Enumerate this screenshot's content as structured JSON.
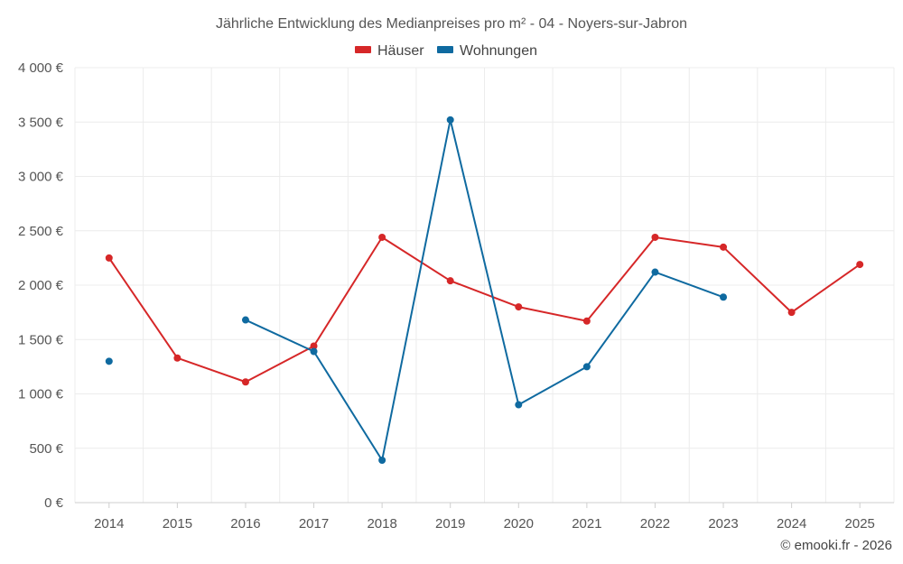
{
  "chart_data": {
    "type": "line",
    "title": "Jährliche Entwicklung des Medianpreises pro m² - 04 - Noyers-sur-Jabron",
    "categories": [
      "2014",
      "2015",
      "2016",
      "2017",
      "2018",
      "2019",
      "2020",
      "2021",
      "2022",
      "2023",
      "2024",
      "2025"
    ],
    "ylim": [
      0,
      4000
    ],
    "yticks": [
      0,
      500,
      1000,
      1500,
      2000,
      2500,
      3000,
      3500,
      4000
    ],
    "ytick_labels": [
      "0 €",
      "500 €",
      "1 000 €",
      "1 500 €",
      "2 000 €",
      "2 500 €",
      "3 000 €",
      "3 500 €",
      "4 000 €"
    ],
    "grid": true,
    "legend_position": "top-center",
    "series": [
      {
        "name": "Häuser",
        "color": "#d62728",
        "values": [
          2250,
          1330,
          1110,
          1440,
          2440,
          2040,
          1800,
          1670,
          2440,
          2350,
          1750,
          2190
        ]
      },
      {
        "name": "Wohnungen",
        "color": "#0f6aa0",
        "values": [
          1300,
          null,
          1680,
          1390,
          390,
          3520,
          900,
          1250,
          2120,
          1890,
          null,
          null
        ]
      }
    ]
  },
  "credit": "© emooki.fr - 2026"
}
